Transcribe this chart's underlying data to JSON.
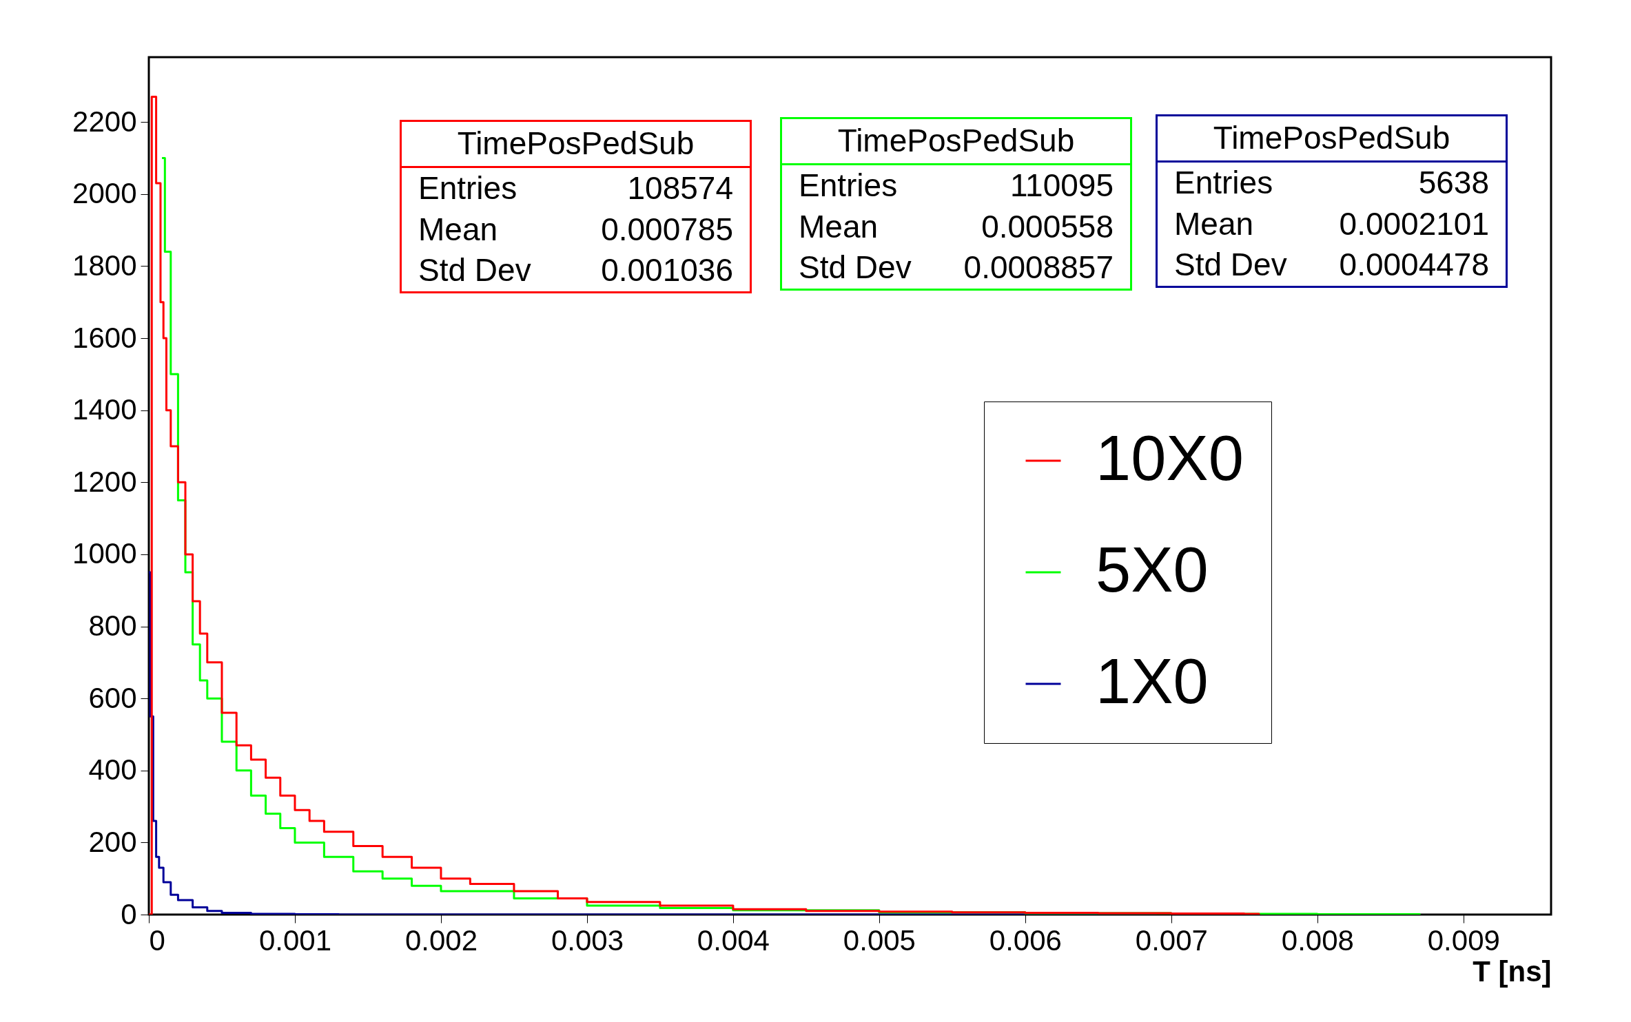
{
  "chart_data": {
    "type": "step",
    "xlabel": "T [ns]",
    "xlim": [
      0,
      0.0096
    ],
    "ylim": [
      0,
      2380
    ],
    "xticks": [
      0,
      0.001,
      0.002,
      0.003,
      0.004,
      0.005,
      0.006,
      0.007,
      0.008,
      0.009
    ],
    "yticks": [
      0,
      200,
      400,
      600,
      800,
      1000,
      1200,
      1400,
      1600,
      1800,
      2000,
      2200
    ],
    "grid": false,
    "legend": "right",
    "line_style": "solid",
    "series": [
      {
        "name": "10X0",
        "color": "#ff0000",
        "x": [
          0,
          2e-05,
          5e-05,
          8e-05,
          0.0001,
          0.00012,
          0.00015,
          0.0002,
          0.00025,
          0.0003,
          0.00035,
          0.0004,
          0.0005,
          0.0006,
          0.0007,
          0.0008,
          0.0009,
          0.001,
          0.0011,
          0.0012,
          0.0014,
          0.0016,
          0.0018,
          0.002,
          0.0022,
          0.0025,
          0.0028,
          0.003,
          0.0035,
          0.004,
          0.0045,
          0.005,
          0.0055,
          0.006,
          0.0065,
          0.007,
          0.0075,
          0.0076
        ],
        "values": [
          0,
          2270,
          2030,
          1700,
          1600,
          1400,
          1300,
          1200,
          1000,
          870,
          780,
          700,
          560,
          470,
          430,
          380,
          330,
          290,
          260,
          230,
          190,
          160,
          130,
          100,
          85,
          65,
          45,
          35,
          25,
          15,
          10,
          8,
          6,
          5,
          4,
          3,
          2,
          0
        ]
      },
      {
        "name": "5X0",
        "color": "#00ff00",
        "x": [
          9e-05,
          0.00011,
          0.00015,
          0.0002,
          0.00025,
          0.0003,
          0.00035,
          0.0004,
          0.0005,
          0.0006,
          0.0007,
          0.0008,
          0.0009,
          0.001,
          0.0012,
          0.0014,
          0.0016,
          0.0018,
          0.002,
          0.0025,
          0.003,
          0.0035,
          0.004,
          0.005,
          0.006,
          0.007,
          0.008,
          0.0087
        ],
        "values": [
          2100,
          1840,
          1500,
          1150,
          950,
          750,
          650,
          600,
          480,
          400,
          330,
          280,
          240,
          200,
          160,
          120,
          100,
          80,
          65,
          45,
          25,
          18,
          12,
          6,
          4,
          2,
          1,
          0
        ]
      },
      {
        "name": "1X0",
        "color": "#000099",
        "x": [
          0,
          1e-05,
          3e-05,
          5e-05,
          7e-05,
          0.0001,
          0.00015,
          0.0002,
          0.0003,
          0.0004,
          0.0005,
          0.0007,
          0.001,
          0.0013,
          0.0069
        ],
        "values": [
          950,
          550,
          260,
          160,
          130,
          90,
          55,
          40,
          20,
          10,
          5,
          2,
          1,
          0,
          0
        ]
      }
    ],
    "annotations": [
      "TimePosPedSub",
      "Entries",
      "108574",
      "Mean",
      "0.000785",
      "Std Dev",
      "0.001036",
      "TimePosPedSub",
      "Entries",
      "110095",
      "Mean",
      "0.000558",
      "Std Dev",
      "0.0008857",
      "TimePosPedSub",
      "Entries",
      "5638",
      "Mean",
      "0.0002101",
      "Std Dev",
      "0.0004478"
    ]
  }
}
